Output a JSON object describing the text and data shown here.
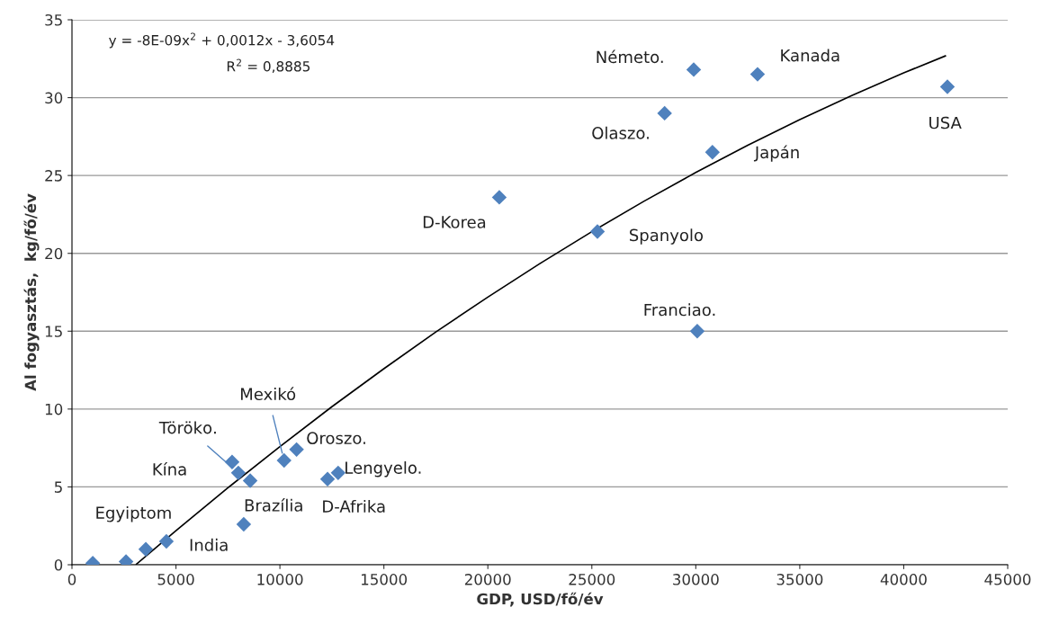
{
  "chart_data": {
    "type": "scatter",
    "xlabel": "GDP, USD/fő/év",
    "ylabel": "Al fogyasztás,  kg/fő/év",
    "xlim": [
      0,
      45000
    ],
    "ylim": [
      0,
      35
    ],
    "xticks": [
      0,
      5000,
      10000,
      15000,
      20000,
      25000,
      30000,
      35000,
      40000,
      45000
    ],
    "yticks": [
      0,
      5,
      10,
      15,
      20,
      25,
      30,
      35
    ],
    "grid": "y",
    "legend": false,
    "series": [
      {
        "marker": "diamond",
        "color": "#4f81bd",
        "x": [
          1000,
          2600,
          3550,
          4540,
          7700,
          8000,
          8570,
          8260,
          10200,
          10800,
          12290,
          12800,
          20550,
          25270,
          28500,
          29900,
          30070,
          30800,
          32970,
          42100
        ],
        "values": [
          0.1,
          0.2,
          1.0,
          1.5,
          6.6,
          5.9,
          5.4,
          2.6,
          6.7,
          7.4,
          5.5,
          5.9,
          23.6,
          21.4,
          29.0,
          31.8,
          15.0,
          26.5,
          31.5,
          30.7
        ]
      },
      {
        "type": "line",
        "marker": "none",
        "color": "#000000",
        "line_style": "solid",
        "x": [
          3100,
          5000,
          7500,
          10000,
          12500,
          15000,
          17500,
          20000,
          22500,
          25000,
          27500,
          30000,
          32500,
          35000,
          37500,
          40000,
          42000
        ],
        "values": [
          0.04,
          2.19,
          4.94,
          7.59,
          10.15,
          12.59,
          14.95,
          17.19,
          19.34,
          21.39,
          23.34,
          25.19,
          26.94,
          28.59,
          30.14,
          31.59,
          32.68
        ]
      }
    ],
    "annotations": [
      "y = -8E-09x$^{2}$ + 0,0012x - 3,6054",
      "R$^{2}$ = 0,8885",
      {
        "text": "Egyiptom",
        "x": 2600,
        "y": 0.2
      },
      {
        "text": "India",
        "x": 4540,
        "y": 1.5
      },
      {
        "text": "Kína",
        "x": 7700,
        "y": 6.6
      },
      {
        "text": "Törökо.",
        "x": 8000,
        "y": 5.9
      },
      {
        "text": "Mexikó",
        "x": 10200,
        "y": 6.7
      },
      {
        "text": "Brazília",
        "x": 8260,
        "y": 2.6
      },
      {
        "text": "Oroszo.",
        "x": 10800,
        "y": 7.4
      },
      {
        "text": "Lengyelo.",
        "x": 12800,
        "y": 5.9
      },
      {
        "text": "D-Afrika",
        "x": 12290,
        "y": 5.5
      },
      {
        "text": "D-Korea",
        "x": 20550,
        "y": 23.6
      },
      {
        "text": "Spanyolo",
        "x": 25270,
        "y": 21.4
      },
      {
        "text": "Olaszo.",
        "x": 28500,
        "y": 29.0
      },
      {
        "text": "Németo.",
        "x": 29900,
        "y": 31.8
      },
      {
        "text": "Franciao.",
        "x": 30070,
        "y": 15.0
      },
      {
        "text": "Japán",
        "x": 30800,
        "y": 26.5
      },
      {
        "text": "Kanada",
        "x": 32970,
        "y": 31.5
      },
      {
        "text": "USA",
        "x": 42100,
        "y": 30.7
      }
    ]
  }
}
